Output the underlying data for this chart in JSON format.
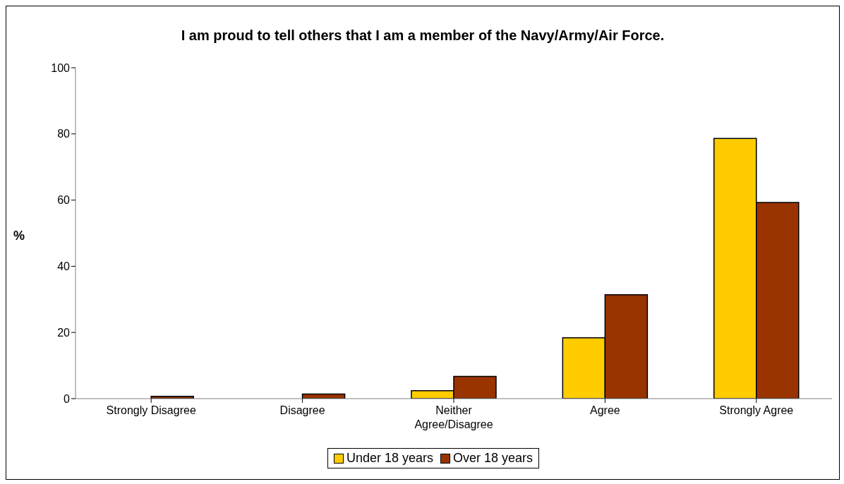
{
  "chart_data": {
    "type": "bar",
    "title": "I am proud to tell others that I am a member of the Navy/Army/Air Force.",
    "ylabel": "%",
    "categories": [
      "Strongly Disagree",
      "Disagree",
      "Neither Agree/Disagree",
      "Agree",
      "Strongly Agree"
    ],
    "series": [
      {
        "name": "Under 18 years",
        "color": "#ffcc00",
        "values": [
          0,
          0,
          2.4,
          18.4,
          78.6
        ]
      },
      {
        "name": "Over 18 years",
        "color": "#993300",
        "values": [
          0.7,
          1.4,
          6.7,
          31.4,
          59.3
        ]
      }
    ],
    "ylim": [
      0,
      100
    ],
    "yticks": [
      0,
      20,
      40,
      60,
      80,
      100
    ],
    "grid": false,
    "legend": "bottom"
  }
}
